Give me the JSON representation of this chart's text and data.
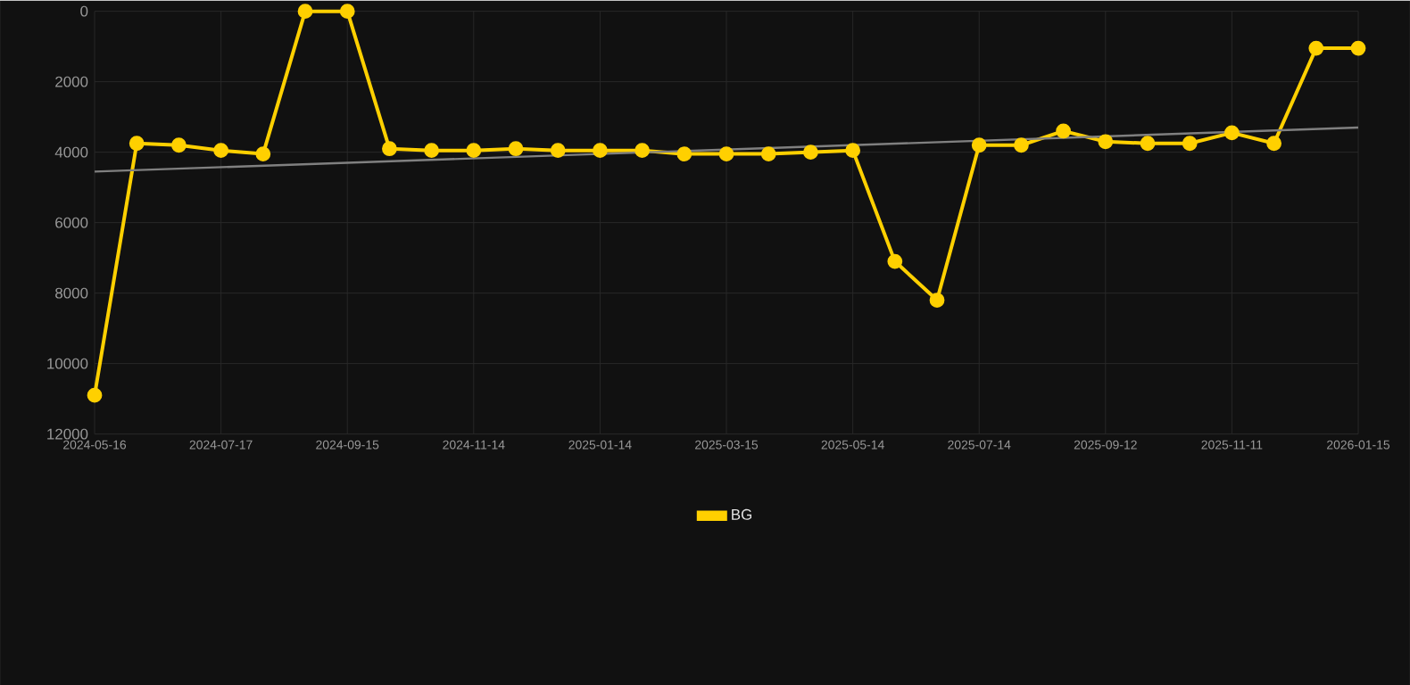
{
  "chart_data": {
    "type": "line",
    "categories": [
      "2024-05-16",
      null,
      null,
      "2024-07-17",
      null,
      null,
      "2024-09-15",
      null,
      null,
      "2024-11-14",
      null,
      null,
      "2025-01-14",
      null,
      null,
      "2025-03-15",
      null,
      null,
      "2025-05-14",
      null,
      null,
      "2025-07-14",
      null,
      null,
      "2025-09-12",
      null,
      null,
      "2025-11-11",
      null,
      null,
      "2026-01-15"
    ],
    "series": [
      {
        "name": "BG",
        "color": "#ffd000",
        "values": [
          10900,
          3750,
          3800,
          3950,
          4050,
          0,
          0,
          3900,
          3950,
          3950,
          3900,
          3950,
          3950,
          3950,
          4050,
          4050,
          4050,
          4000,
          3950,
          7100,
          8200,
          3800,
          3800,
          3400,
          3700,
          3750,
          3750,
          3450,
          3750,
          1050,
          1050
        ],
        "marker": "circle"
      },
      {
        "color": "#808080",
        "values": [
          4550,
          null,
          null,
          null,
          null,
          null,
          null,
          null,
          null,
          null,
          null,
          null,
          null,
          null,
          null,
          null,
          null,
          null,
          null,
          null,
          null,
          null,
          null,
          null,
          null,
          null,
          null,
          null,
          null,
          null,
          3300
        ],
        "marker": "none"
      }
    ],
    "ylim": [
      12000,
      0
    ],
    "yticks": [
      0,
      2000,
      4000,
      6000,
      8000,
      10000,
      12000
    ],
    "grid": true,
    "legend": "bottom"
  }
}
